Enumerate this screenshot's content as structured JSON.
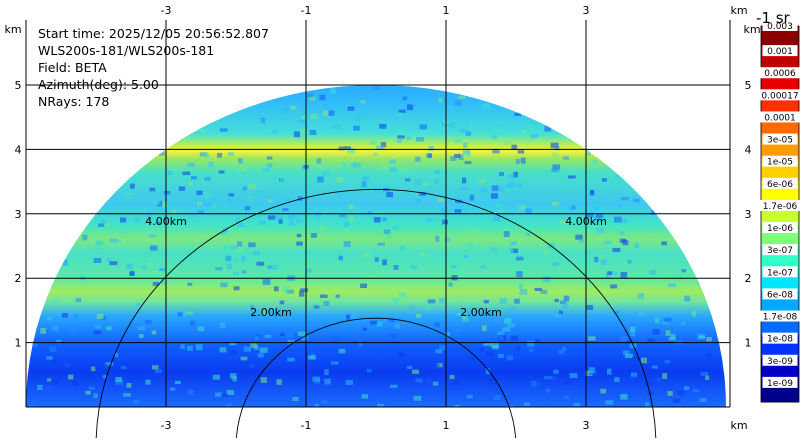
{
  "info": {
    "start_time": "Start time: 2025/12/05 20:56:52.807",
    "instrument": "WLS200s-181/WLS200s-181",
    "field": "Field: BETA",
    "azimuth": "Azimuth(deg): 5.00",
    "nrays": "NRays: 178"
  },
  "colorbar": {
    "title": "-1 sr",
    "top_label": "0.003",
    "labels": [
      "0.001",
      "0.0006",
      "0.00017",
      "0.0001",
      "3e-05",
      "1e-05",
      "6e-06",
      "1.7e-06",
      "1e-06",
      "3e-07",
      "1e-07",
      "6e-08",
      "1.7e-08",
      "1e-08",
      "3e-09",
      "1e-09"
    ],
    "colors": [
      "#8b0000",
      "#c00000",
      "#e80000",
      "#ff3000",
      "#ff6a00",
      "#ff9d00",
      "#ffd000",
      "#ffff00",
      "#c8ff30",
      "#7dff7a",
      "#30ffc8",
      "#00e5ff",
      "#00a8ff",
      "#006dff",
      "#0032ff",
      "#0000c8",
      "#00008b"
    ]
  },
  "chart_data": {
    "type": "heatmap",
    "title": "",
    "xlabel": "km",
    "ylabel": "km",
    "xlim": [
      -5,
      5.5
    ],
    "ylim": [
      0,
      5.8
    ],
    "x_ticks": [
      -3,
      -1,
      1,
      3
    ],
    "y_ticks": [
      1,
      2,
      3,
      4,
      5
    ],
    "range_rings": [
      {
        "radius_km": 2,
        "label": "2.00km"
      },
      {
        "radius_km": 4,
        "label": "4.00km"
      }
    ],
    "max_range_km": 5.0,
    "grid": true,
    "scan": "RHI sector 0-180 deg elevation",
    "layers": [
      {
        "feature": "elevated aerosol layer (yellow-green)",
        "height_km": 3.95
      },
      {
        "feature": "aerosol layer (green)",
        "height_km": 2.7
      },
      {
        "feature": "aerosol layer (green)",
        "height_km": 1.9
      },
      {
        "feature": "low backscatter (blue)",
        "height_km": 0.6
      }
    ]
  }
}
